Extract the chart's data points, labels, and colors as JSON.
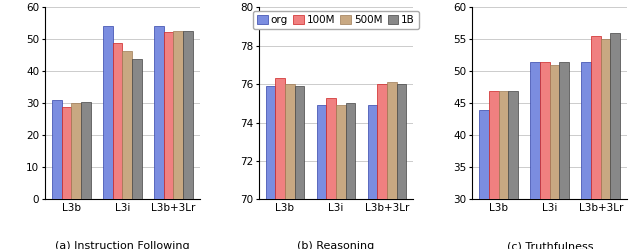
{
  "categories": [
    "L3b",
    "L3i",
    "L3b+3Lr"
  ],
  "series_labels": [
    "org",
    "100M",
    "500M",
    "1B"
  ],
  "colors": [
    "#7b8de0",
    "#f08080",
    "#c8a882",
    "#888888"
  ],
  "edge_colors": [
    "#3344aa",
    "#cc2222",
    "#9e7a55",
    "#444444"
  ],
  "chart_a": {
    "title": "(a) Instruction Following",
    "ylim": [
      0,
      60
    ],
    "yticks": [
      0,
      10,
      20,
      30,
      40,
      50,
      60
    ],
    "data": [
      [
        31.2,
        29.0,
        30.0,
        30.5
      ],
      [
        54.2,
        49.0,
        46.5,
        44.0
      ],
      [
        54.2,
        52.2,
        52.5,
        52.5
      ]
    ]
  },
  "chart_b": {
    "title": "(b) Reasoning",
    "ylim": [
      70,
      80
    ],
    "yticks": [
      70,
      72,
      74,
      76,
      78,
      80
    ],
    "data": [
      [
        75.9,
        76.3,
        76.0,
        75.9
      ],
      [
        74.9,
        75.3,
        74.9,
        75.0
      ],
      [
        74.9,
        76.0,
        76.1,
        76.0
      ]
    ]
  },
  "chart_c": {
    "title": "(c) Truthfulness",
    "ylim": [
      30,
      60
    ],
    "yticks": [
      30,
      35,
      40,
      45,
      50,
      55,
      60
    ],
    "data": [
      [
        44.0,
        47.0,
        47.0,
        47.0
      ],
      [
        51.5,
        51.5,
        51.0,
        51.5
      ],
      [
        51.5,
        55.5,
        55.0,
        56.0
      ]
    ]
  },
  "bar_width": 0.19,
  "figsize": [
    6.4,
    2.49
  ],
  "dpi": 100
}
